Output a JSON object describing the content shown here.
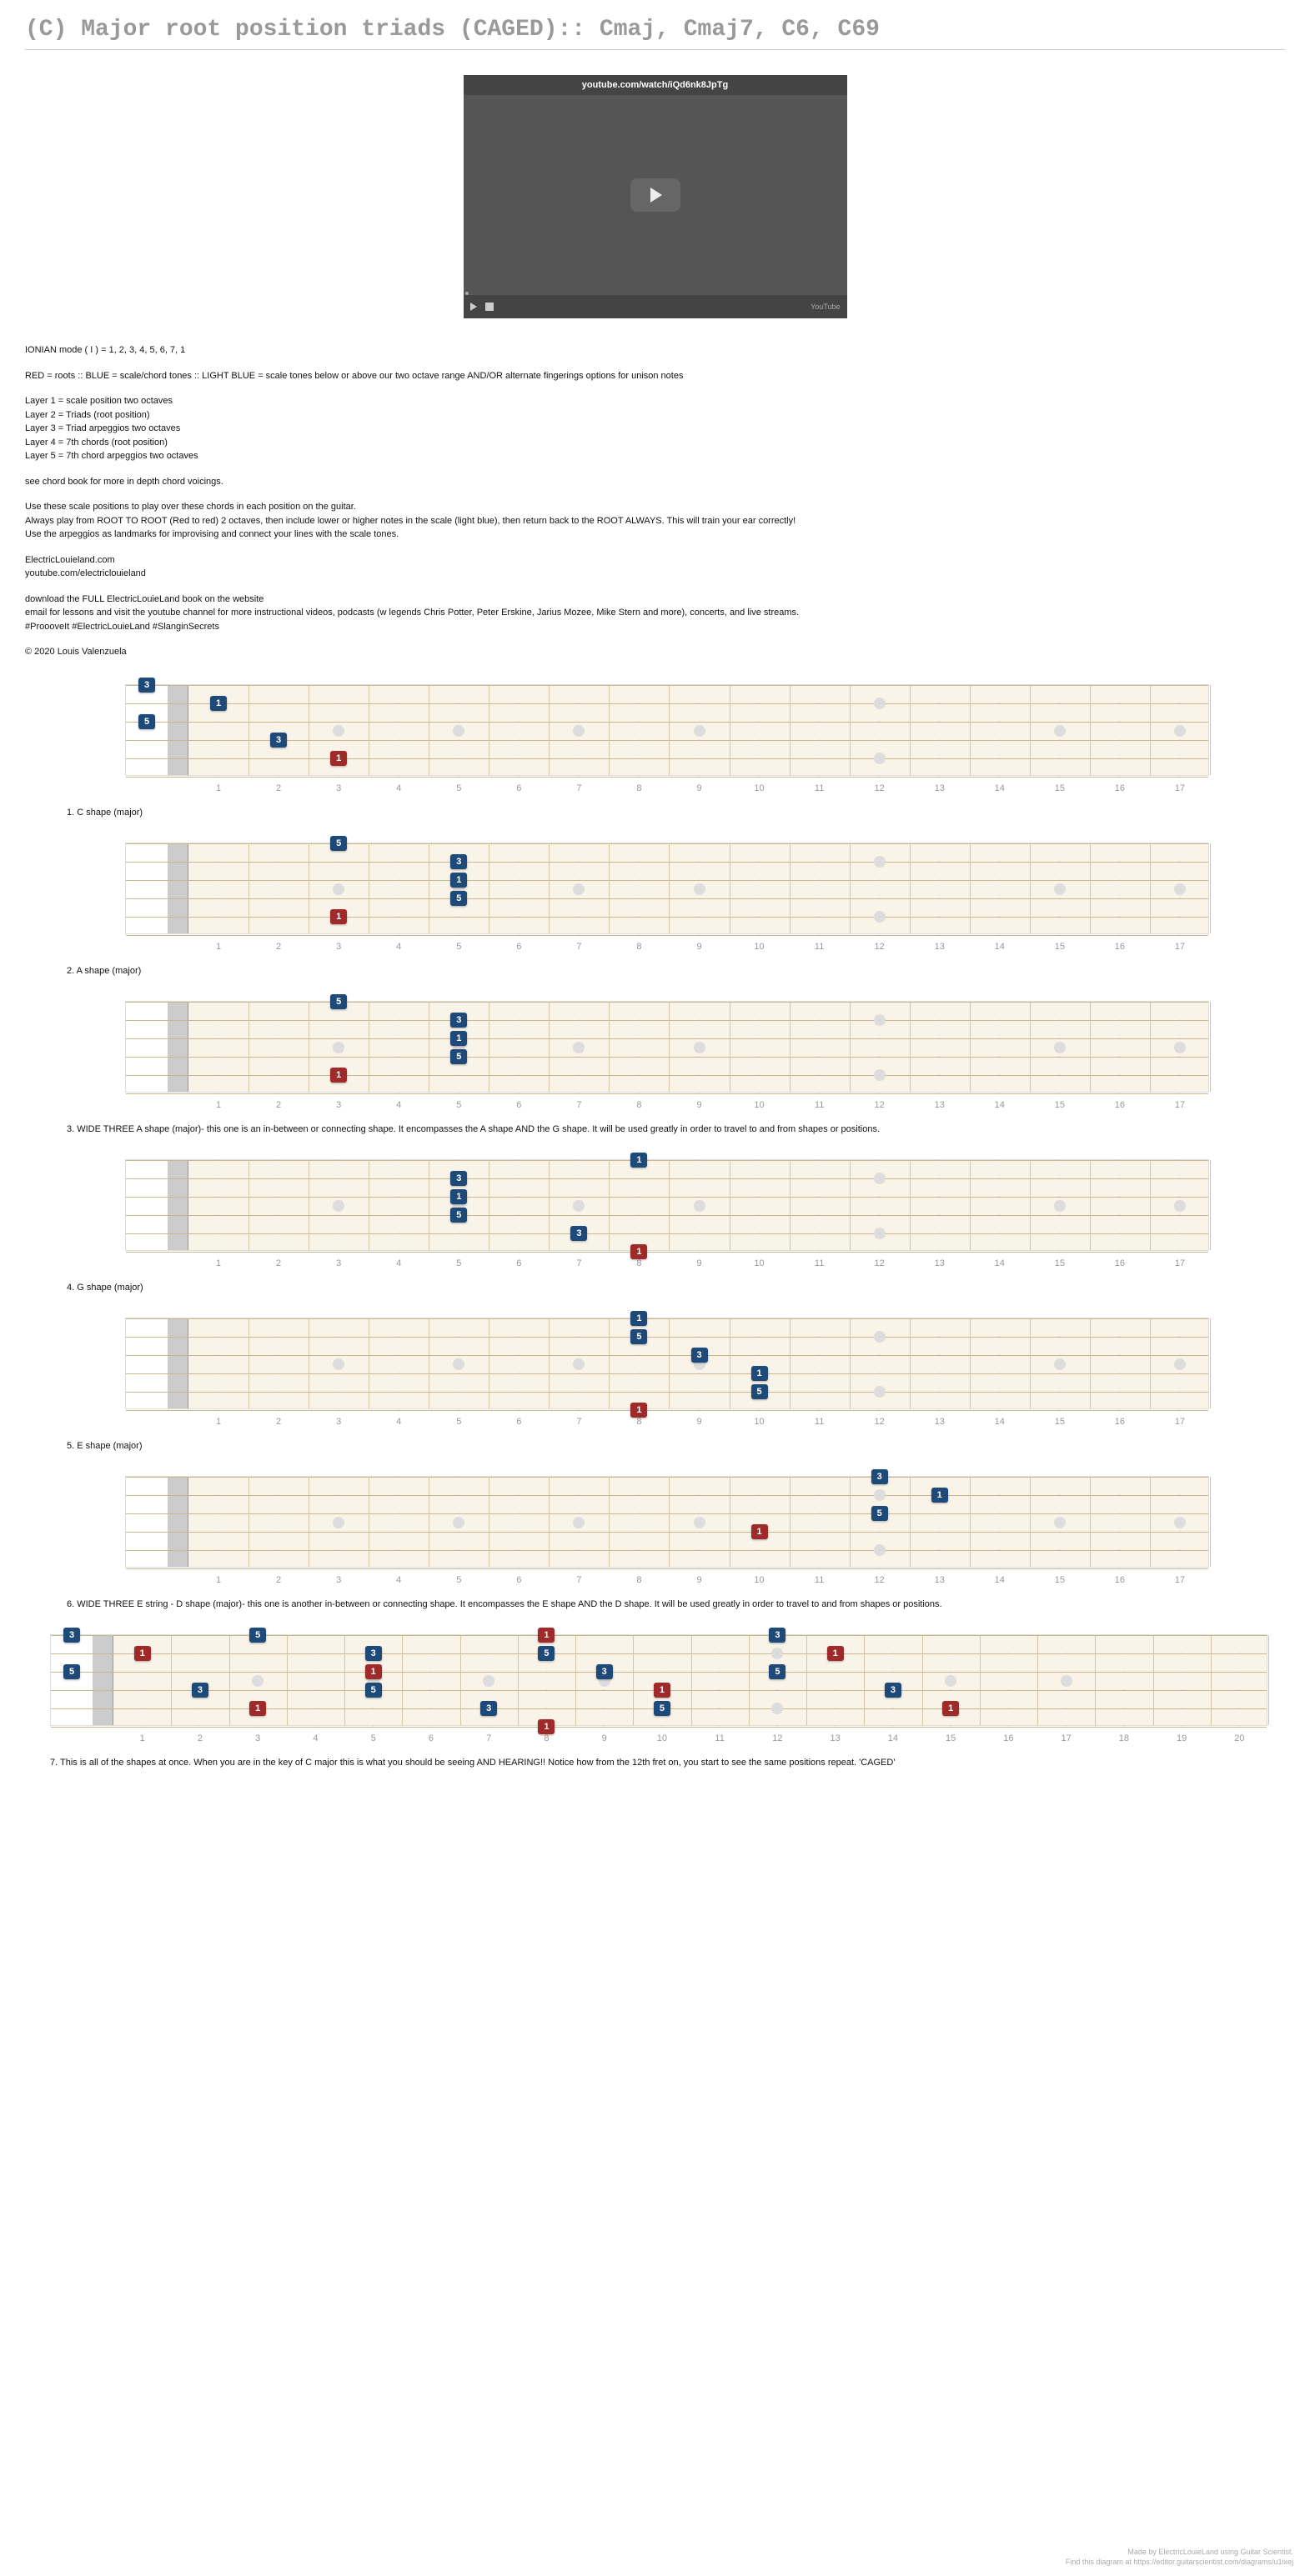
{
  "title": "(C) Major root position triads (CAGED):: Cmaj, Cmaj7, C6, C69",
  "video": {
    "url_text": "youtube.com/watch/iQd6nk8JpTg",
    "bar_label": "YouTube"
  },
  "description": {
    "mode_line": "IONIAN mode ( I ) = 1, 2, 3, 4, 5, 6, 7, 1",
    "color_line": "RED = roots  ::  BLUE = scale/chord tones ::  LIGHT BLUE = scale tones below or above our two octave range AND/OR alternate fingerings options for unison notes",
    "layers": "Layer 1 = scale position two octaves\nLayer 2 = Triads (root position)\nLayer 3 = Triad arpeggios two octaves\nLayer 4 = 7th chords (root position)\nLayer 5 = 7th chord arpeggios two octaves",
    "chord_book": "see chord book for more in depth chord voicings.",
    "instructions": "Use these scale positions to play over these chords in each position on the guitar.\nAlways play from ROOT TO ROOT (Red to red) 2 octaves, then include lower or higher notes in the scale (light blue), then return back to the ROOT ALWAYS. This will train your ear correctly!\nUse the arpeggios as landmarks for improvising and connect your lines with the scale tones.",
    "links": "ElectricLouieland.com\nyoutube.com/electriclouieland",
    "promo": "download the FULL ElectricLouieLand book on the website\nemail for lessons and visit the youtube channel for more instructional videos, podcasts (w legends Chris Potter, Peter Erskine, Jarius Mozee, Mike Stern and more), concerts, and live streams.\n#ProooveIt #ElectricLouieLand #SlanginSecrets",
    "copyright": "© 2020 Louis Valenzuela"
  },
  "fret_style": {
    "bg_color": "#f9f3e8",
    "string_color": "#c8b890",
    "fret_color": "#d4c4a0",
    "inlay_color": "#dddddd",
    "root_color": "#9e2a2a",
    "tone_color": "#1e4a7a",
    "num_strings": 6,
    "board_height": 110,
    "left_margin": 120,
    "open_width": 50,
    "nut_width": 25,
    "inlay_frets_single": [
      3,
      5,
      7,
      9,
      15,
      17
    ],
    "inlay_frets_double": [
      12
    ]
  },
  "diagrams": [
    {
      "caption": "1. C shape (major)",
      "max_fret": 17,
      "markers": [
        {
          "string": 1,
          "fret": 0,
          "label": "3",
          "type": "tone"
        },
        {
          "string": 2,
          "fret": 1,
          "label": "1",
          "type": "tone"
        },
        {
          "string": 3,
          "fret": 0,
          "label": "5",
          "type": "tone"
        },
        {
          "string": 4,
          "fret": 2,
          "label": "3",
          "type": "tone"
        },
        {
          "string": 5,
          "fret": 3,
          "label": "1",
          "type": "root"
        }
      ]
    },
    {
      "caption": "2. A shape (major)",
      "max_fret": 17,
      "markers": [
        {
          "string": 1,
          "fret": 3,
          "label": "5",
          "type": "tone"
        },
        {
          "string": 2,
          "fret": 5,
          "label": "3",
          "type": "tone"
        },
        {
          "string": 3,
          "fret": 5,
          "label": "1",
          "type": "tone"
        },
        {
          "string": 4,
          "fret": 5,
          "label": "5",
          "type": "tone"
        },
        {
          "string": 5,
          "fret": 3,
          "label": "1",
          "type": "root"
        }
      ]
    },
    {
      "caption": "3. WIDE THREE A shape (major)- this one is an in-between or connecting shape. It encompasses the A shape AND the G shape. It will be used greatly in order to travel to and from shapes or positions.",
      "max_fret": 17,
      "markers": [
        {
          "string": 1,
          "fret": 3,
          "label": "5",
          "type": "tone"
        },
        {
          "string": 2,
          "fret": 5,
          "label": "3",
          "type": "tone"
        },
        {
          "string": 3,
          "fret": 5,
          "label": "1",
          "type": "tone"
        },
        {
          "string": 4,
          "fret": 5,
          "label": "5",
          "type": "tone"
        },
        {
          "string": 5,
          "fret": 3,
          "label": "1",
          "type": "root"
        }
      ]
    },
    {
      "caption": "4. G shape (major)",
      "max_fret": 17,
      "markers": [
        {
          "string": 1,
          "fret": 8,
          "label": "1",
          "type": "tone"
        },
        {
          "string": 2,
          "fret": 5,
          "label": "3",
          "type": "tone"
        },
        {
          "string": 3,
          "fret": 5,
          "label": "1",
          "type": "tone"
        },
        {
          "string": 4,
          "fret": 5,
          "label": "5",
          "type": "tone"
        },
        {
          "string": 5,
          "fret": 7,
          "label": "3",
          "type": "tone"
        },
        {
          "string": 6,
          "fret": 8,
          "label": "1",
          "type": "root"
        }
      ]
    },
    {
      "caption": "5. E shape (major)",
      "max_fret": 17,
      "markers": [
        {
          "string": 1,
          "fret": 8,
          "label": "1",
          "type": "tone"
        },
        {
          "string": 2,
          "fret": 8,
          "label": "5",
          "type": "tone"
        },
        {
          "string": 3,
          "fret": 9,
          "label": "3",
          "type": "tone"
        },
        {
          "string": 4,
          "fret": 10,
          "label": "1",
          "type": "tone"
        },
        {
          "string": 5,
          "fret": 10,
          "label": "5",
          "type": "tone"
        },
        {
          "string": 6,
          "fret": 8,
          "label": "1",
          "type": "root"
        }
      ]
    },
    {
      "caption": "6. WIDE THREE E string - D shape (major)- this one is another in-between or connecting shape. It encompasses the E shape AND the D shape. It will be used greatly in order to travel to and from shapes or positions.",
      "max_fret": 17,
      "markers": [
        {
          "string": 1,
          "fret": 12,
          "label": "3",
          "type": "tone"
        },
        {
          "string": 2,
          "fret": 13,
          "label": "1",
          "type": "tone"
        },
        {
          "string": 3,
          "fret": 12,
          "label": "5",
          "type": "tone"
        },
        {
          "string": 4,
          "fret": 10,
          "label": "1",
          "type": "root"
        }
      ]
    },
    {
      "caption": "7. This is all of the shapes at once. When you are in the key of C major this is what you should be seeing AND HEARING!! Notice how from the 12th fret on, you start to see the same positions repeat. 'CAGED'",
      "max_fret": 20,
      "full_width": true,
      "markers": [
        {
          "string": 1,
          "fret": 0,
          "label": "3",
          "type": "tone"
        },
        {
          "string": 2,
          "fret": 1,
          "label": "1",
          "type": "root"
        },
        {
          "string": 3,
          "fret": 0,
          "label": "5",
          "type": "tone"
        },
        {
          "string": 4,
          "fret": 2,
          "label": "3",
          "type": "tone"
        },
        {
          "string": 5,
          "fret": 3,
          "label": "1",
          "type": "root"
        },
        {
          "string": 1,
          "fret": 3,
          "label": "5",
          "type": "tone"
        },
        {
          "string": 2,
          "fret": 5,
          "label": "3",
          "type": "tone"
        },
        {
          "string": 3,
          "fret": 5,
          "label": "1",
          "type": "root"
        },
        {
          "string": 4,
          "fret": 5,
          "label": "5",
          "type": "tone"
        },
        {
          "string": 5,
          "fret": 7,
          "label": "3",
          "type": "tone"
        },
        {
          "string": 6,
          "fret": 8,
          "label": "1",
          "type": "root"
        },
        {
          "string": 1,
          "fret": 8,
          "label": "1",
          "type": "root"
        },
        {
          "string": 2,
          "fret": 8,
          "label": "5",
          "type": "tone"
        },
        {
          "string": 3,
          "fret": 9,
          "label": "3",
          "type": "tone"
        },
        {
          "string": 4,
          "fret": 10,
          "label": "1",
          "type": "root"
        },
        {
          "string": 5,
          "fret": 10,
          "label": "5",
          "type": "tone"
        },
        {
          "string": 1,
          "fret": 12,
          "label": "3",
          "type": "tone"
        },
        {
          "string": 2,
          "fret": 13,
          "label": "1",
          "type": "root"
        },
        {
          "string": 3,
          "fret": 12,
          "label": "5",
          "type": "tone"
        },
        {
          "string": 4,
          "fret": 14,
          "label": "3",
          "type": "tone"
        },
        {
          "string": 5,
          "fret": 15,
          "label": "1",
          "type": "root"
        }
      ]
    }
  ],
  "footer": {
    "line1": "Made by ElectricLouieLand using Guitar Scientist.",
    "line2": "Find this diagram at https://editor.guitarscientist.com/diagrams/u1ixej"
  }
}
